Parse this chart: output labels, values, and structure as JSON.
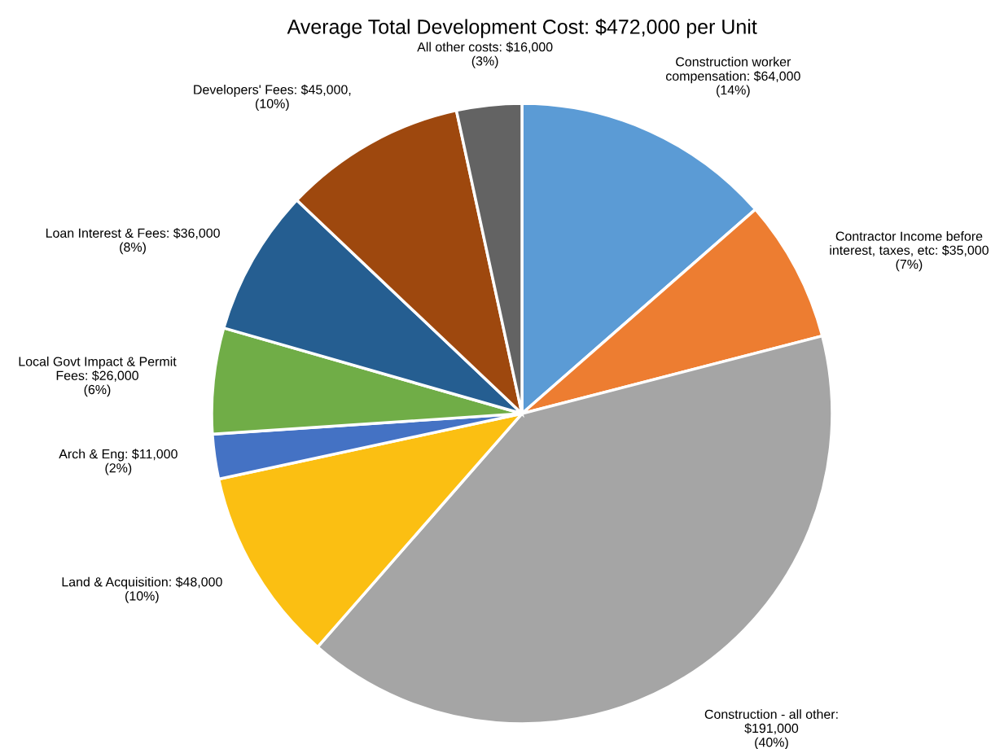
{
  "chart_data": {
    "type": "pie",
    "title": "Average Total Development Cost: $472,000 per Unit",
    "categories": [
      "Construction worker\ncompensation: $64,000\n(14%)",
      "Contractor Income before\ninterest, taxes, etc: $35,000\n(7%)",
      "Construction - all other:\n$191,000\n(40%)",
      "Land & Acquisition: $48,000\n(10%)",
      "Arch & Eng: $11,000\n(2%)",
      "Local Govt Impact & Permit\nFees: $26,000\n(6%)",
      "Loan Interest & Fees: $36,000\n(8%)",
      "Developers' Fees: $45,000,\n(10%)",
      "All other costs: $16,000\n(3%)"
    ],
    "values": [
      64000,
      35000,
      191000,
      48000,
      11000,
      26000,
      36000,
      45000,
      16000
    ],
    "colors": [
      "#5b9bd5",
      "#ed7d31",
      "#a5a5a5",
      "#fbbf12",
      "#4472c4",
      "#70ad47",
      "#255e91",
      "#9e480e",
      "#636363"
    ],
    "legend": false
  }
}
